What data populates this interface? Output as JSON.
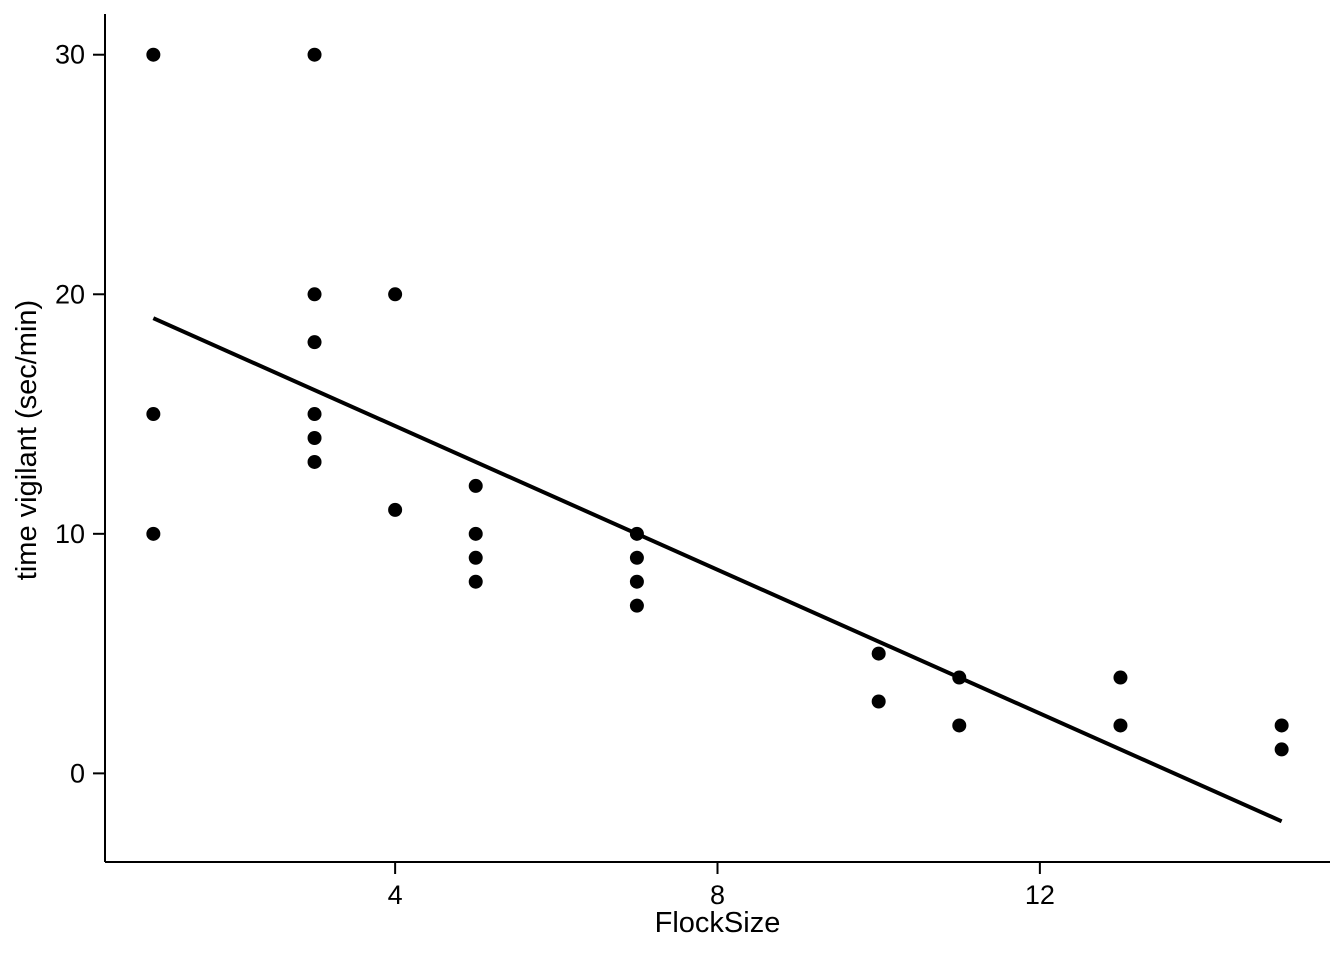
{
  "chart_data": {
    "type": "scatter",
    "title": "",
    "xlabel": "FlockSize",
    "ylabel": "time vigilant (sec/min)",
    "xlim": [
      0.4,
      15.6
    ],
    "ylim": [
      -3.7,
      31.7
    ],
    "x_ticks": [
      4,
      8,
      12
    ],
    "y_ticks": [
      0,
      10,
      20,
      30
    ],
    "grid": false,
    "legend": false,
    "background_color": "#ffffff",
    "point_color": "#000000",
    "line_color": "#000000",
    "axis_color": "#000000",
    "points": [
      [
        1,
        30
      ],
      [
        1,
        15
      ],
      [
        1,
        10
      ],
      [
        3,
        30
      ],
      [
        3,
        20
      ],
      [
        3,
        18
      ],
      [
        3,
        15
      ],
      [
        3,
        14
      ],
      [
        3,
        13
      ],
      [
        4,
        20
      ],
      [
        4,
        11
      ],
      [
        5,
        12
      ],
      [
        5,
        10
      ],
      [
        5,
        9
      ],
      [
        5,
        8
      ],
      [
        7,
        10
      ],
      [
        7,
        9
      ],
      [
        7,
        8
      ],
      [
        7,
        7
      ],
      [
        10,
        5
      ],
      [
        10,
        3
      ],
      [
        11,
        4
      ],
      [
        11,
        2
      ],
      [
        13,
        4
      ],
      [
        13,
        2
      ],
      [
        15,
        2
      ],
      [
        15,
        1
      ]
    ],
    "regression_line": {
      "x1": 1,
      "y1": 19,
      "x2": 15,
      "y2": -2
    }
  }
}
